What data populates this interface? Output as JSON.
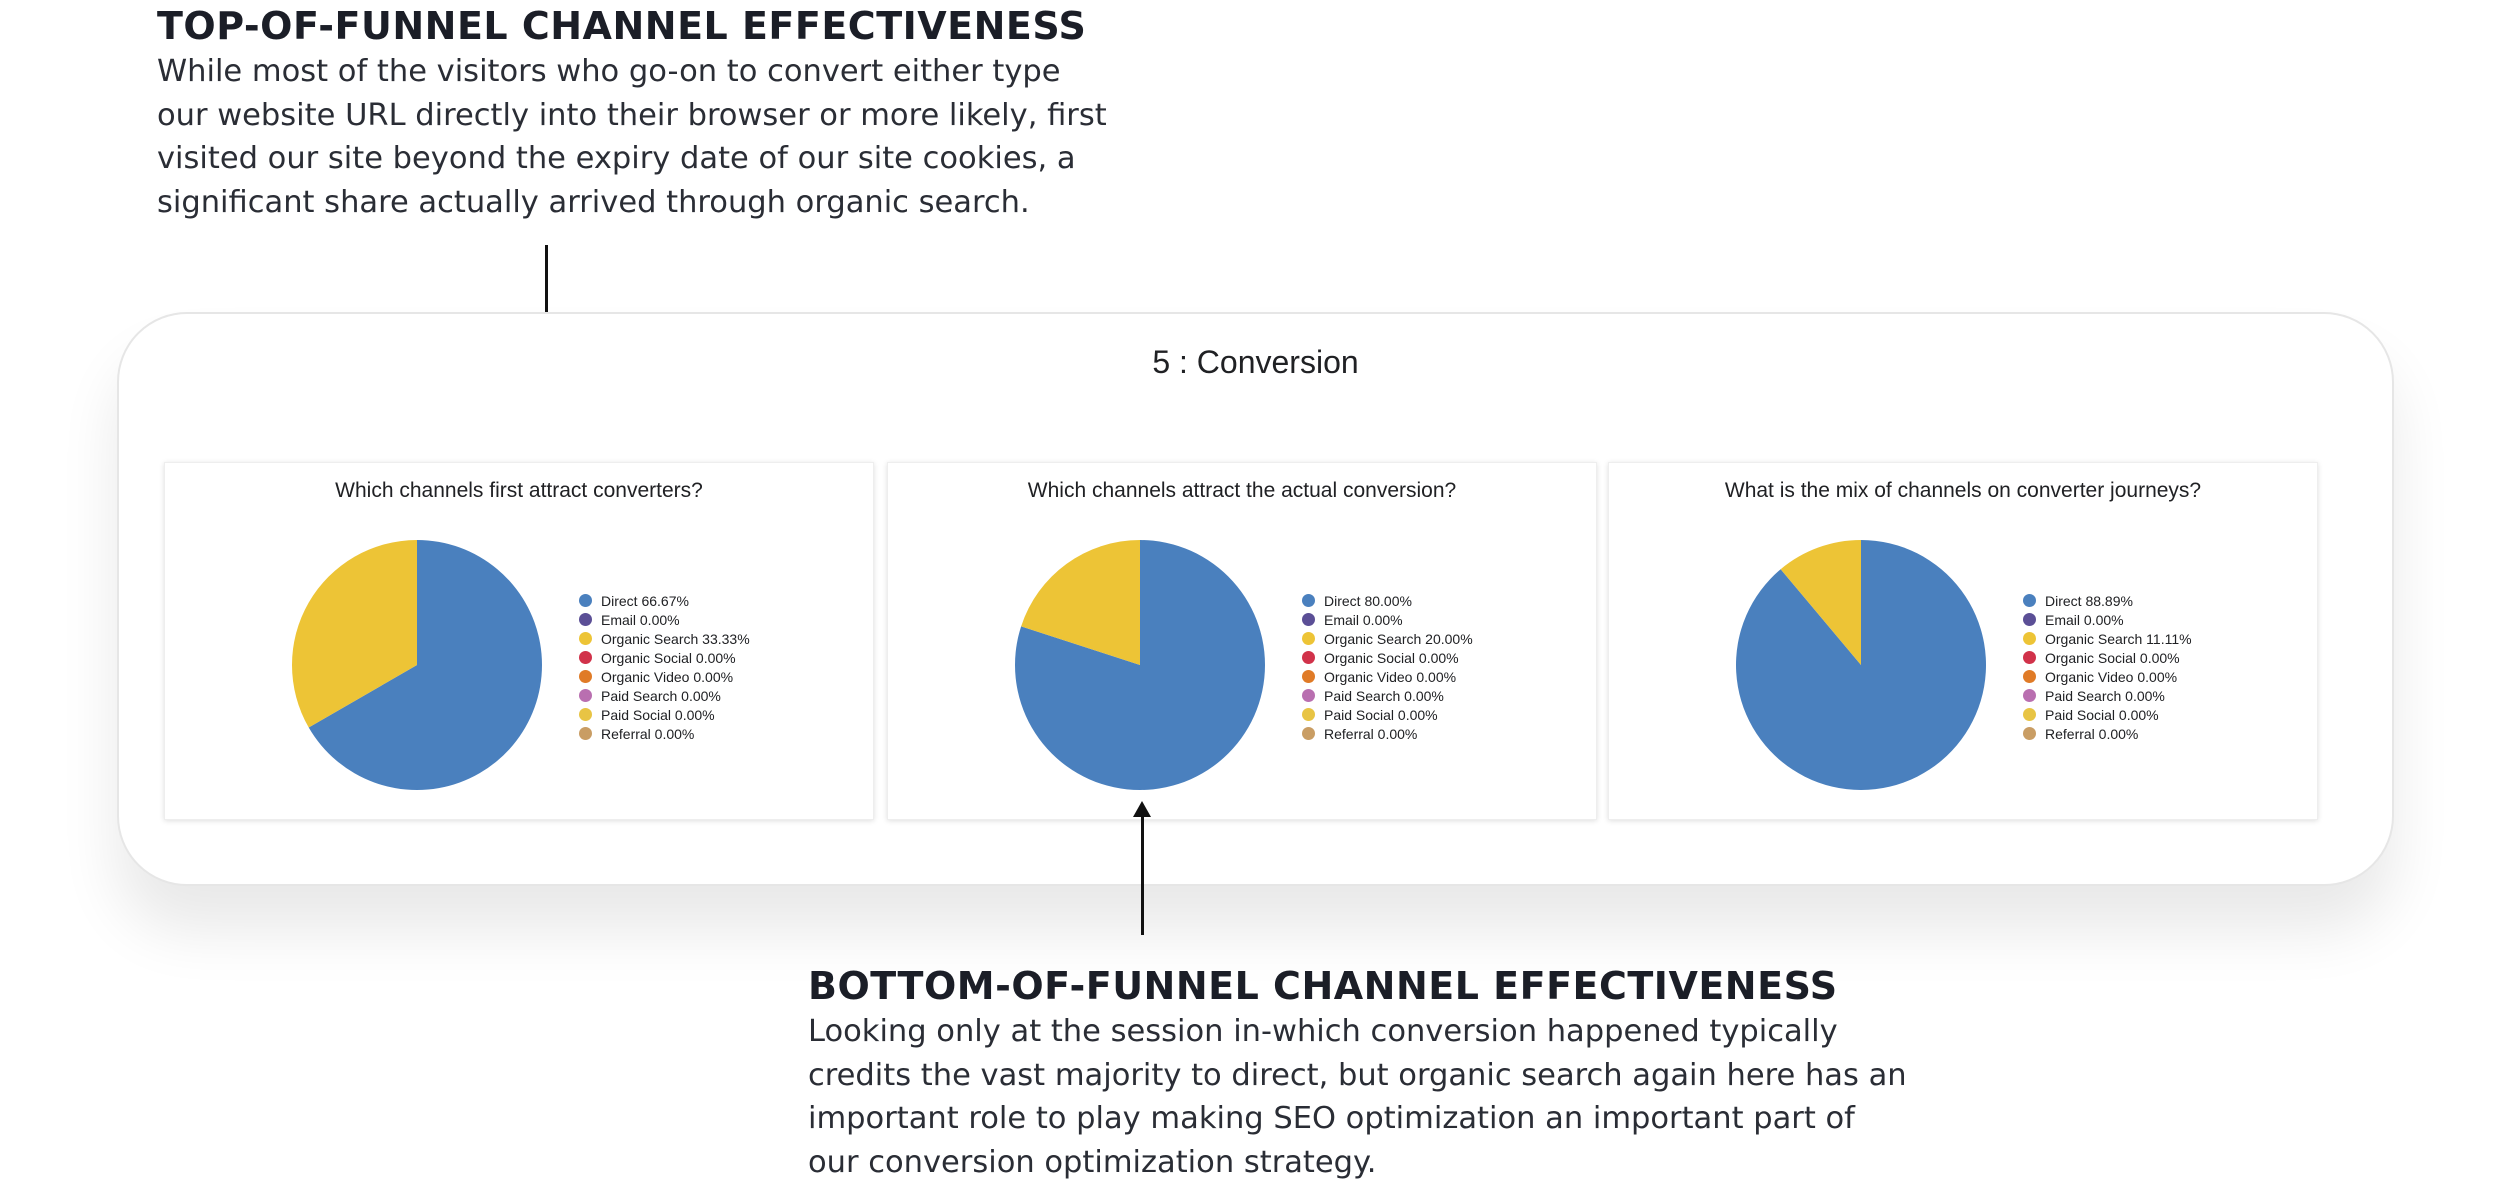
{
  "top_annotation": {
    "heading": "TOP-OF-FUNNEL CHANNEL EFFECTIVENESS",
    "body": "While most of the visitors who go-on to convert either type our website URL directly into their browser or more likely, first visited our site beyond the expiry date of our site cookies, a significant share actually arrived through organic search."
  },
  "bottom_annotation": {
    "heading": "BOTTOM-OF-FUNNEL CHANNEL EFFECTIVENESS",
    "body": "Looking only at the session in-which conversion happened typically credits the vast majority to direct, but organic search again here has an important role to play making SEO optimization an important part of our conversion optimization strategy."
  },
  "dashboard": {
    "title": "5 : Conversion"
  },
  "channel_colors": [
    "#4a80be",
    "#5b4f96",
    "#edc436",
    "#d1324a",
    "#e07b27",
    "#b96fb0",
    "#e8c444",
    "#c99d64"
  ],
  "chart_data": [
    {
      "type": "pie",
      "title": "Which channels first attract converters?",
      "labels": [
        "Direct",
        "Email",
        "Organic Search",
        "Organic Social",
        "Organic Video",
        "Paid Search",
        "Paid Social",
        "Referral"
      ],
      "values": [
        66.67,
        0.0,
        33.33,
        0.0,
        0.0,
        0.0,
        0.0,
        0.0
      ],
      "legend": [
        "Direct 66.67%",
        "Email 0.00%",
        "Organic Search 33.33%",
        "Organic Social 0.00%",
        "Organic Video 0.00%",
        "Paid Search 0.00%",
        "Paid Social 0.00%",
        "Referral 0.00%"
      ],
      "legend_position": "right"
    },
    {
      "type": "pie",
      "title": "Which channels attract the actual conversion?",
      "labels": [
        "Direct",
        "Email",
        "Organic Search",
        "Organic Social",
        "Organic Video",
        "Paid Search",
        "Paid Social",
        "Referral"
      ],
      "values": [
        80.0,
        0.0,
        20.0,
        0.0,
        0.0,
        0.0,
        0.0,
        0.0
      ],
      "legend": [
        "Direct 80.00%",
        "Email 0.00%",
        "Organic Search 20.00%",
        "Organic Social 0.00%",
        "Organic Video 0.00%",
        "Paid Search 0.00%",
        "Paid Social 0.00%",
        "Referral 0.00%"
      ],
      "legend_position": "right"
    },
    {
      "type": "pie",
      "title": "What is the mix of channels on converter journeys?",
      "labels": [
        "Direct",
        "Email",
        "Organic Search",
        "Organic Social",
        "Organic Video",
        "Paid Search",
        "Paid Social",
        "Referral"
      ],
      "values": [
        88.89,
        0.0,
        11.11,
        0.0,
        0.0,
        0.0,
        0.0,
        0.0
      ],
      "legend": [
        "Direct 88.89%",
        "Email 0.00%",
        "Organic Search 11.11%",
        "Organic Social 0.00%",
        "Organic Video 0.00%",
        "Paid Search 0.00%",
        "Paid Social 0.00%",
        "Referral 0.00%"
      ],
      "legend_position": "right"
    }
  ]
}
